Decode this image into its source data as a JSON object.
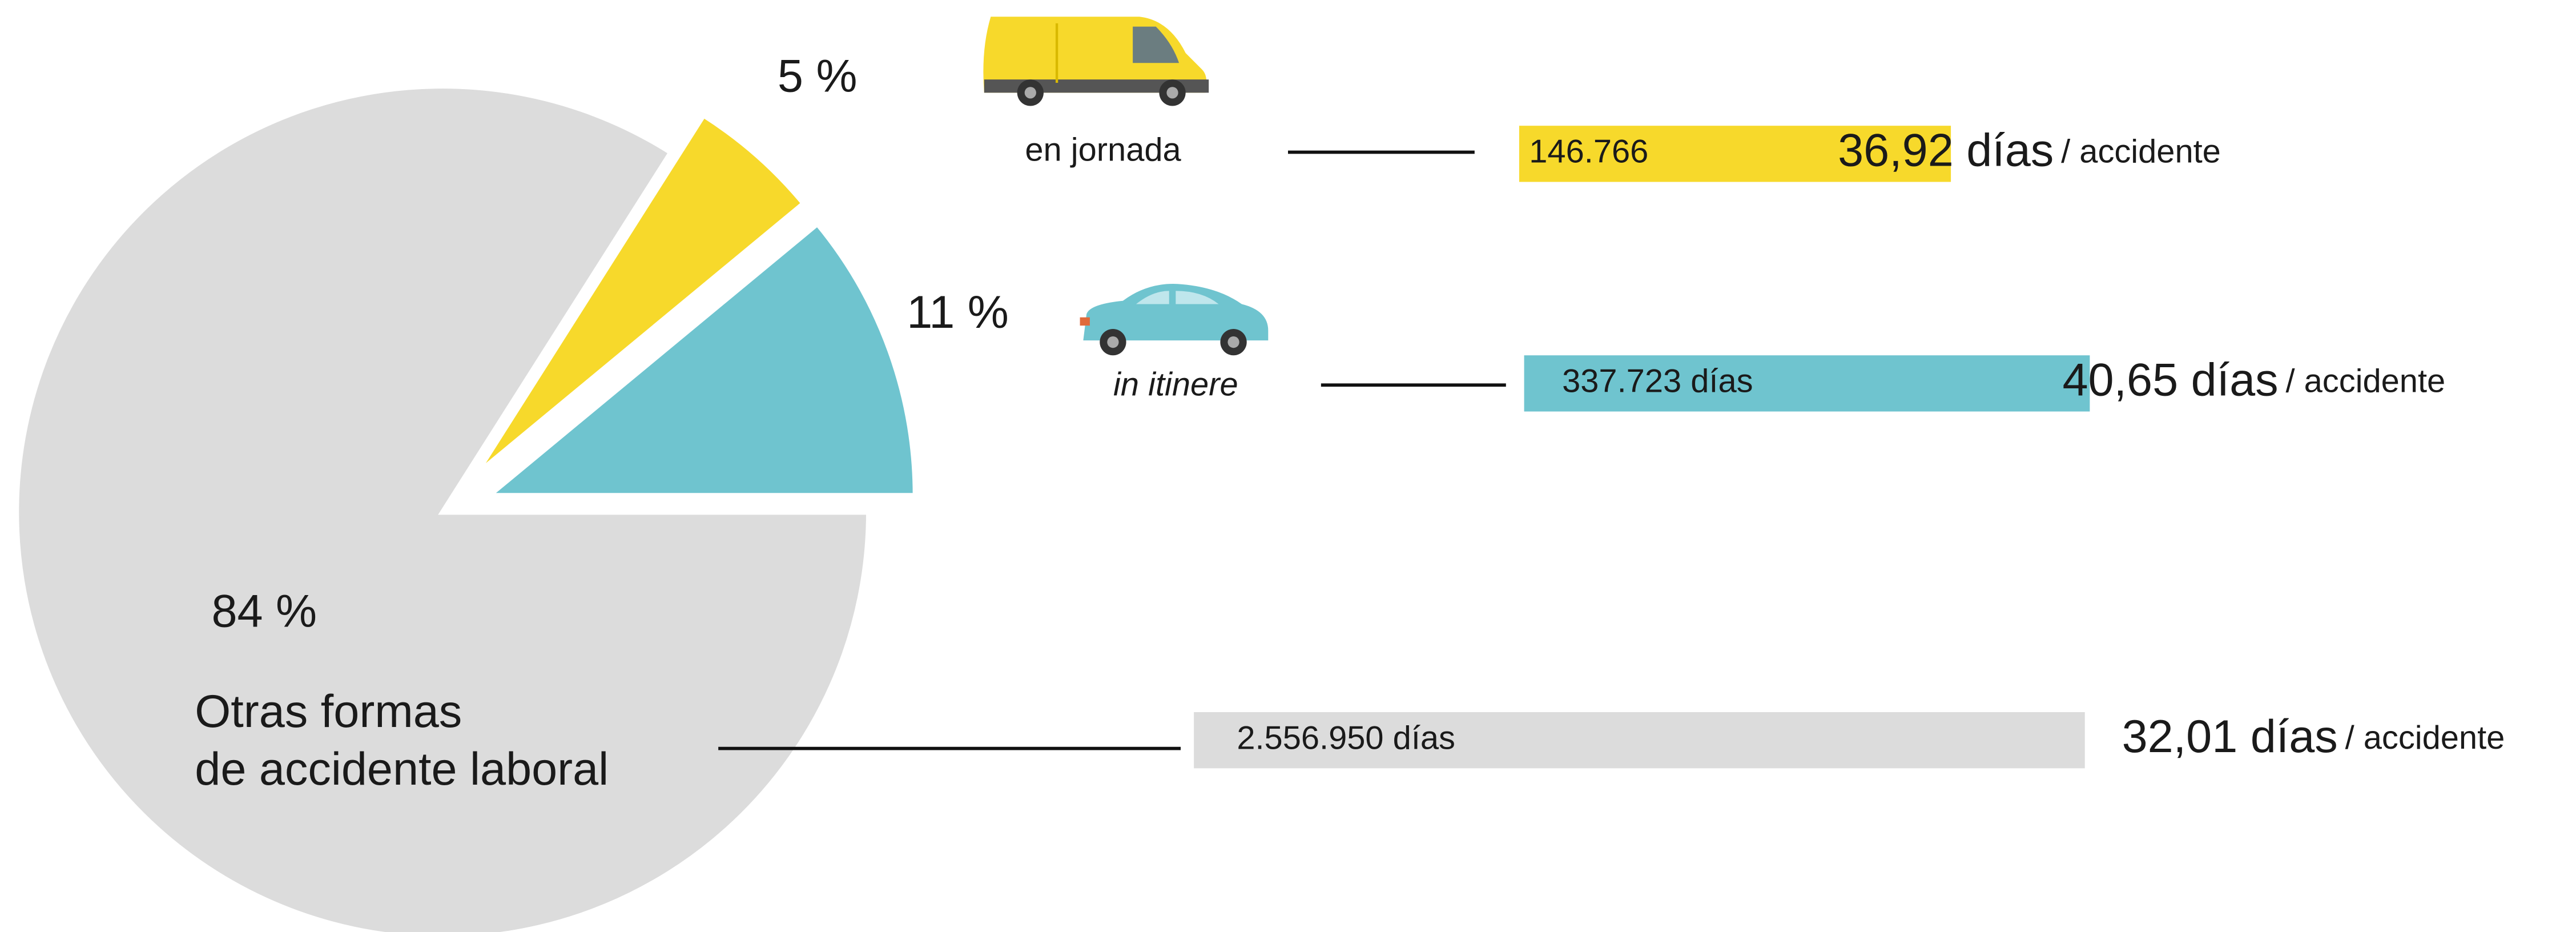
{
  "chart_data": {
    "type": "pie",
    "categories": [
      "en jornada",
      "in itinere",
      "Otras formas\nde accidente laboral"
    ],
    "values": [
      5,
      11,
      84
    ],
    "value_labels": [
      "5 %",
      "11 %",
      "84 %"
    ],
    "colors": [
      "#f7d92b",
      "#6fc4cf",
      "#dcdcdc"
    ],
    "bar_values": [
      146766,
      337723,
      2556950
    ],
    "bar_labels": [
      "146.766",
      "337.723 días",
      "2.556.950 días"
    ],
    "bar_scale": "log",
    "bar_xlim": [
      10000,
      10000000
    ],
    "rate_values": [
      36.92,
      40.65,
      32.01
    ],
    "rate_labels": [
      "36,92 días",
      "40,65 días",
      "32,01 días"
    ],
    "rate_unit": "/ accidente"
  }
}
